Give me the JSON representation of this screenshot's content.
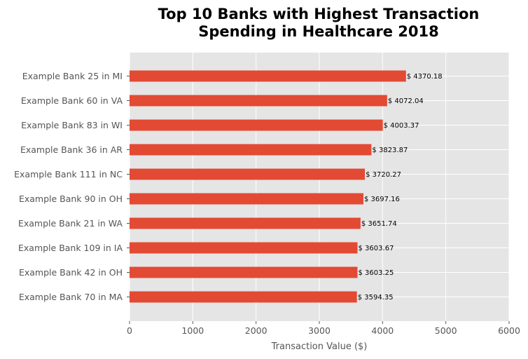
{
  "chart_data": {
    "type": "bar",
    "orientation": "horizontal",
    "title_lines": [
      "Top 10 Banks with Highest Transaction",
      "Spending in Healthcare 2018"
    ],
    "xlabel": "Transaction Value ($)",
    "ylabel": "",
    "xlim": [
      0,
      6000
    ],
    "xticks": [
      0,
      1000,
      2000,
      3000,
      4000,
      5000,
      6000
    ],
    "grid": true,
    "bar_color": "#E24A33",
    "background_color": "#E5E5E5",
    "categories": [
      "Example Bank 25 in MI",
      "Example Bank 60 in VA",
      "Example Bank 83 in WI",
      "Example Bank 36 in AR",
      "Example Bank 111 in NC",
      "Example Bank 90 in OH",
      "Example Bank 21 in WA",
      "Example Bank 109 in IA",
      "Example Bank 42 in OH",
      "Example Bank 70 in MA"
    ],
    "values": [
      4370.18,
      4072.04,
      4003.37,
      3823.87,
      3720.27,
      3697.16,
      3651.74,
      3603.67,
      3603.25,
      3594.35
    ],
    "data_labels": [
      "$ 4370.18",
      "$ 4072.04",
      "$ 4003.37",
      "$ 3823.87",
      "$ 3720.27",
      "$ 3697.16",
      "$ 3651.74",
      "$ 3603.67",
      "$ 3603.25",
      "$ 3594.35"
    ]
  }
}
